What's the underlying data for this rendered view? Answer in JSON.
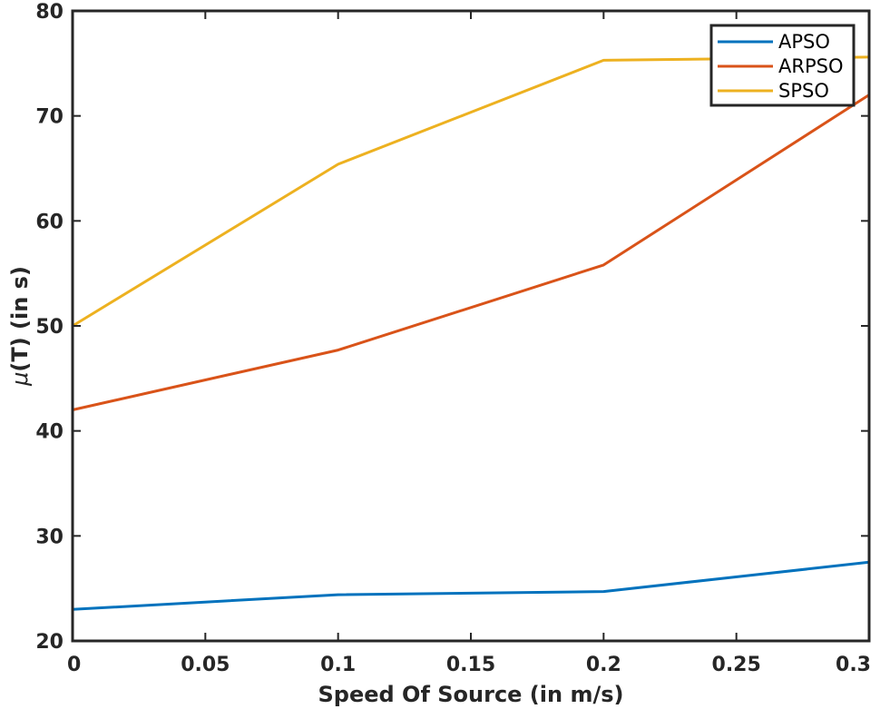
{
  "chart_data": {
    "type": "line",
    "title": "",
    "xlabel": "Speed Of Source (in m/s)",
    "ylabel_prefix": "μ",
    "ylabel_suffix": "(T) (in s)",
    "xlim": [
      0,
      0.3
    ],
    "ylim": [
      20,
      80
    ],
    "xticks": [
      0,
      0.05,
      0.1,
      0.15,
      0.2,
      0.25,
      0.3
    ],
    "xtick_labels": [
      "0",
      "0.05",
      "0.1",
      "0.15",
      "0.2",
      "0.25",
      "0.3"
    ],
    "yticks": [
      20,
      30,
      40,
      50,
      60,
      70,
      80
    ],
    "ytick_labels": [
      "20",
      "30",
      "40",
      "50",
      "60",
      "70",
      "80"
    ],
    "grid": false,
    "legend_position": "top-right",
    "x": [
      0,
      0.1,
      0.2,
      0.3
    ],
    "series": [
      {
        "name": "APSO",
        "color": "#0072BD",
        "values": [
          23.0,
          24.4,
          24.7,
          27.5
        ]
      },
      {
        "name": "ARPSO",
        "color": "#D95319",
        "values": [
          42.0,
          47.7,
          55.8,
          72.0
        ]
      },
      {
        "name": "SPSO",
        "color": "#EDB120",
        "values": [
          50.0,
          65.4,
          75.3,
          75.6
        ]
      }
    ]
  }
}
